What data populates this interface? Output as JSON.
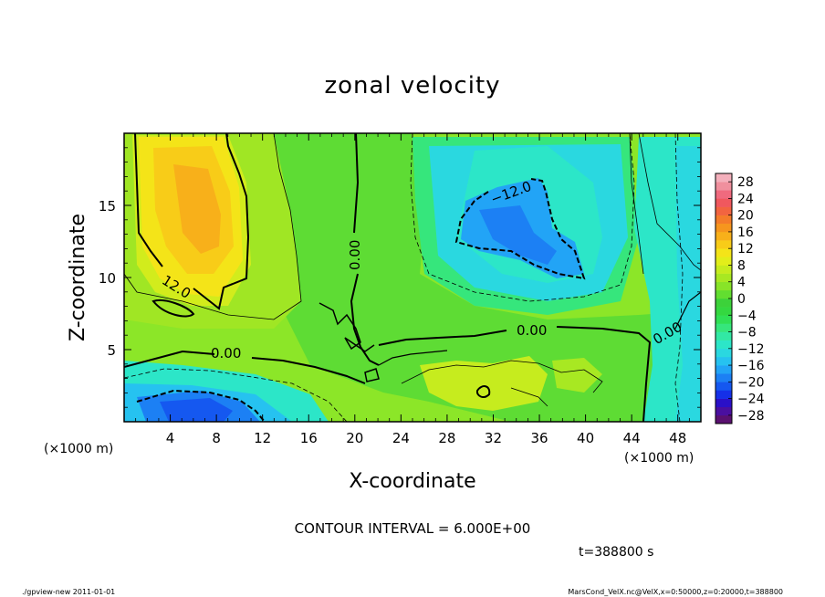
{
  "chart_data": {
    "type": "heatmap",
    "title": "zonal velocity",
    "xlabel": "X-coordinate",
    "ylabel": "Z-coordinate",
    "x_unit_left": "(×1000 m)",
    "x_unit_right": "(×1000 m)",
    "xlim": [
      0,
      50
    ],
    "ylim": [
      0,
      20
    ],
    "x_ticks": [
      "4",
      "8",
      "12",
      "16",
      "20",
      "24",
      "28",
      "32",
      "36",
      "40",
      "44",
      "48"
    ],
    "x_tick_values": [
      4,
      8,
      12,
      16,
      20,
      24,
      28,
      32,
      36,
      40,
      44,
      48
    ],
    "y_ticks": [
      "5",
      "10",
      "15"
    ],
    "y_tick_values": [
      5,
      10,
      15
    ],
    "colorbar": {
      "labels": [
        "28",
        "24",
        "20",
        "16",
        "12",
        "8",
        "4",
        "0",
        "−4",
        "−8",
        "−12",
        "−16",
        "−20",
        "−24",
        "−28"
      ],
      "levels": [
        -30,
        -28,
        -26,
        -24,
        -22,
        -20,
        -18,
        -16,
        -14,
        -12,
        -10,
        -8,
        -6,
        -4,
        -2,
        0,
        2,
        4,
        6,
        8,
        10,
        12,
        14,
        16,
        18,
        20,
        22,
        24,
        26,
        28,
        30
      ],
      "colors": [
        "#5a1070",
        "#4a0fa0",
        "#2a10c8",
        "#1530e8",
        "#1558f0",
        "#1c80f4",
        "#22a4f6",
        "#26c2f0",
        "#2ad8e0",
        "#2ce6c8",
        "#32e8a4",
        "#36e67c",
        "#30e055",
        "#34d840",
        "#3cd23a",
        "#62de30",
        "#88e428",
        "#a8e822",
        "#c6ec1e",
        "#e2ee1a",
        "#f4e418",
        "#f8cc18",
        "#f8b01a",
        "#f6961e",
        "#f47c2a",
        "#f26440",
        "#f0585e",
        "#f06a7e",
        "#f0909e",
        "#f4b0bc"
      ]
    },
    "contour_labels": [
      "12.0",
      "0.00",
      "0.00",
      "0.00",
      "−12.0",
      "0.00"
    ],
    "grid": false
  },
  "annotation": "CONTOUR INTERVAL = 6.000E+00",
  "time_label": "t=388800 s",
  "footer_left": "./gpview-new   2011-01-01",
  "footer_right": "MarsCond_VelX.nc@VelX,x=0:50000,z=0:20000,t=388800"
}
